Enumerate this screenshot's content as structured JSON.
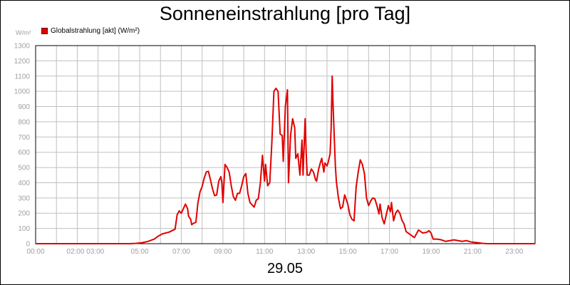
{
  "chart_data": {
    "type": "line",
    "title": "Sonneneinstrahlung [pro Tag]",
    "ylabel": "W/m²",
    "xlabel": "29.05",
    "ylim": [
      0,
      1300
    ],
    "xlim": [
      0,
      24
    ],
    "grid": true,
    "legend_position": "top-left",
    "yticks": [
      "0",
      "100",
      "200",
      "300",
      "400",
      "500",
      "600",
      "700",
      "800",
      "900",
      "1000",
      "1100",
      "1200",
      "1300"
    ],
    "xtick_labels": [
      {
        "x": 0,
        "label": "00:00"
      },
      {
        "x": 2,
        "label": "02:00 03:00"
      },
      {
        "x": 5,
        "label": "05:00"
      },
      {
        "x": 7,
        "label": "07:00"
      },
      {
        "x": 9,
        "label": "09:00"
      },
      {
        "x": 11,
        "label": "11:00"
      },
      {
        "x": 13,
        "label": "13:00"
      },
      {
        "x": 15,
        "label": "15:00"
      },
      {
        "x": 17,
        "label": "17:00"
      },
      {
        "x": 19,
        "label": "19:00"
      },
      {
        "x": 21,
        "label": "21:00"
      },
      {
        "x": 23,
        "label": "23:00"
      }
    ],
    "series": [
      {
        "name": "Globalstrahlung [akt] (W/m²)",
        "color": "#e00000",
        "points": [
          [
            0,
            0
          ],
          [
            4.5,
            0
          ],
          [
            4.8,
            2
          ],
          [
            5.1,
            6
          ],
          [
            5.4,
            15
          ],
          [
            5.7,
            30
          ],
          [
            5.9,
            50
          ],
          [
            6.1,
            65
          ],
          [
            6.4,
            75
          ],
          [
            6.7,
            95
          ],
          [
            6.8,
            190
          ],
          [
            6.9,
            215
          ],
          [
            7.0,
            200
          ],
          [
            7.1,
            230
          ],
          [
            7.2,
            260
          ],
          [
            7.3,
            230
          ],
          [
            7.35,
            180
          ],
          [
            7.45,
            160
          ],
          [
            7.5,
            125
          ],
          [
            7.6,
            135
          ],
          [
            7.7,
            140
          ],
          [
            7.8,
            270
          ],
          [
            7.9,
            340
          ],
          [
            8.0,
            375
          ],
          [
            8.1,
            430
          ],
          [
            8.2,
            470
          ],
          [
            8.3,
            475
          ],
          [
            8.4,
            420
          ],
          [
            8.5,
            360
          ],
          [
            8.6,
            315
          ],
          [
            8.7,
            320
          ],
          [
            8.8,
            410
          ],
          [
            8.9,
            440
          ],
          [
            8.95,
            400
          ],
          [
            9.0,
            270
          ],
          [
            9.1,
            520
          ],
          [
            9.2,
            500
          ],
          [
            9.3,
            470
          ],
          [
            9.4,
            380
          ],
          [
            9.5,
            310
          ],
          [
            9.6,
            285
          ],
          [
            9.7,
            330
          ],
          [
            9.8,
            330
          ],
          [
            9.9,
            380
          ],
          [
            10.0,
            440
          ],
          [
            10.1,
            460
          ],
          [
            10.2,
            330
          ],
          [
            10.3,
            270
          ],
          [
            10.5,
            240
          ],
          [
            10.6,
            285
          ],
          [
            10.7,
            295
          ],
          [
            10.8,
            400
          ],
          [
            10.9,
            580
          ],
          [
            11.0,
            410
          ],
          [
            11.05,
            520
          ],
          [
            11.15,
            380
          ],
          [
            11.25,
            400
          ],
          [
            11.35,
            660
          ],
          [
            11.45,
            1000
          ],
          [
            11.55,
            1020
          ],
          [
            11.65,
            1000
          ],
          [
            11.75,
            720
          ],
          [
            11.85,
            710
          ],
          [
            11.9,
            540
          ],
          [
            12.0,
            900
          ],
          [
            12.1,
            1010
          ],
          [
            12.15,
            400
          ],
          [
            12.25,
            710
          ],
          [
            12.35,
            820
          ],
          [
            12.45,
            760
          ],
          [
            12.5,
            560
          ],
          [
            12.6,
            590
          ],
          [
            12.7,
            450
          ],
          [
            12.8,
            680
          ],
          [
            12.85,
            450
          ],
          [
            12.95,
            820
          ],
          [
            13.0,
            600
          ],
          [
            13.05,
            450
          ],
          [
            13.15,
            450
          ],
          [
            13.25,
            490
          ],
          [
            13.35,
            470
          ],
          [
            13.45,
            420
          ],
          [
            13.5,
            410
          ],
          [
            13.6,
            490
          ],
          [
            13.7,
            540
          ],
          [
            13.75,
            560
          ],
          [
            13.85,
            470
          ],
          [
            13.9,
            530
          ],
          [
            14.0,
            510
          ],
          [
            14.05,
            530
          ],
          [
            14.15,
            590
          ],
          [
            14.2,
            760
          ],
          [
            14.25,
            1100
          ],
          [
            14.3,
            880
          ],
          [
            14.4,
            520
          ],
          [
            14.45,
            410
          ],
          [
            14.55,
            300
          ],
          [
            14.65,
            230
          ],
          [
            14.75,
            240
          ],
          [
            14.85,
            320
          ],
          [
            14.95,
            280
          ],
          [
            15.0,
            260
          ],
          [
            15.1,
            190
          ],
          [
            15.2,
            160
          ],
          [
            15.3,
            150
          ],
          [
            15.4,
            370
          ],
          [
            15.5,
            470
          ],
          [
            15.6,
            550
          ],
          [
            15.7,
            520
          ],
          [
            15.8,
            460
          ],
          [
            15.9,
            300
          ],
          [
            16.0,
            250
          ],
          [
            16.1,
            280
          ],
          [
            16.2,
            300
          ],
          [
            16.3,
            295
          ],
          [
            16.4,
            250
          ],
          [
            16.5,
            195
          ],
          [
            16.55,
            260
          ],
          [
            16.65,
            170
          ],
          [
            16.75,
            130
          ],
          [
            16.85,
            190
          ],
          [
            16.95,
            250
          ],
          [
            17.05,
            210
          ],
          [
            17.1,
            270
          ],
          [
            17.2,
            150
          ],
          [
            17.3,
            200
          ],
          [
            17.4,
            220
          ],
          [
            17.5,
            200
          ],
          [
            17.6,
            155
          ],
          [
            17.7,
            130
          ],
          [
            17.8,
            80
          ],
          [
            17.9,
            70
          ],
          [
            18.0,
            60
          ],
          [
            18.1,
            50
          ],
          [
            18.2,
            40
          ],
          [
            18.4,
            90
          ],
          [
            18.6,
            70
          ],
          [
            18.8,
            75
          ],
          [
            18.9,
            85
          ],
          [
            19.0,
            70
          ],
          [
            19.1,
            30
          ],
          [
            19.3,
            30
          ],
          [
            19.5,
            25
          ],
          [
            19.7,
            15
          ],
          [
            19.9,
            20
          ],
          [
            20.1,
            25
          ],
          [
            20.3,
            20
          ],
          [
            20.5,
            15
          ],
          [
            20.7,
            20
          ],
          [
            20.9,
            12
          ],
          [
            21.1,
            8
          ],
          [
            21.3,
            5
          ],
          [
            21.5,
            2
          ],
          [
            21.7,
            0
          ],
          [
            24,
            0
          ]
        ]
      }
    ]
  }
}
